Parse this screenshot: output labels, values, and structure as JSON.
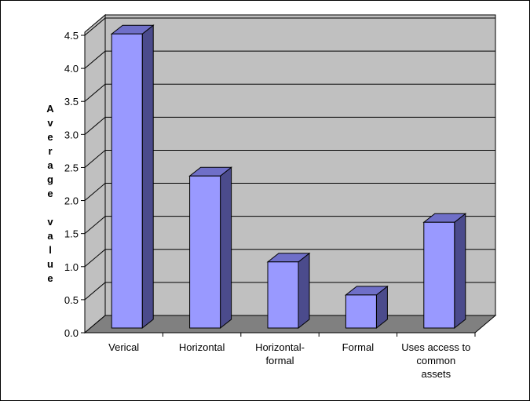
{
  "chart_data": {
    "type": "bar",
    "title": "",
    "xlabel": "",
    "ylabel": "Average value",
    "categories": [
      [
        "Verical"
      ],
      [
        "Horizontal"
      ],
      [
        "Horizontal-",
        "formal"
      ],
      [
        "Formal"
      ],
      [
        "Uses access to",
        "common",
        "assets"
      ]
    ],
    "values": [
      4.45,
      2.3,
      1.0,
      0.5,
      1.6
    ],
    "ylim": [
      0,
      4.5
    ],
    "yticks": [
      "0.0",
      "0.5",
      "1.0",
      "1.5",
      "2.0",
      "2.5",
      "3.0",
      "3.5",
      "4.0",
      "4.5"
    ],
    "grid": true,
    "legend": "none",
    "colors": {
      "bar_front": "#9999ff",
      "bar_side": "#4b4b8c",
      "bar_top": "#6f6fc8",
      "wall": "#c0c0c0",
      "floor": "#808080",
      "edge": "#000000"
    }
  }
}
